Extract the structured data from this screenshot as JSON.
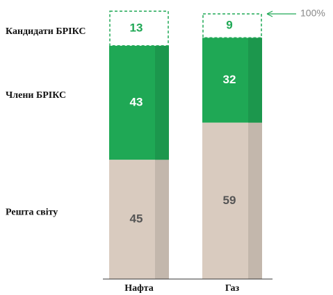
{
  "chart_data": {
    "type": "stacked-bar",
    "categories": [
      "Нафта",
      "Газ"
    ],
    "series": [
      {
        "name": "Решта світу",
        "color": "#d9cbbf",
        "values": [
          45,
          59
        ]
      },
      {
        "name": "Члени БРІКС",
        "color": "#1fa855",
        "values": [
          43,
          32
        ]
      },
      {
        "name": "Кандидати БРІКС",
        "color": "#1fa855",
        "values": [
          13,
          9
        ],
        "dashed": true
      }
    ],
    "ylim": [
      0,
      100
    ],
    "annotation": "100%"
  }
}
